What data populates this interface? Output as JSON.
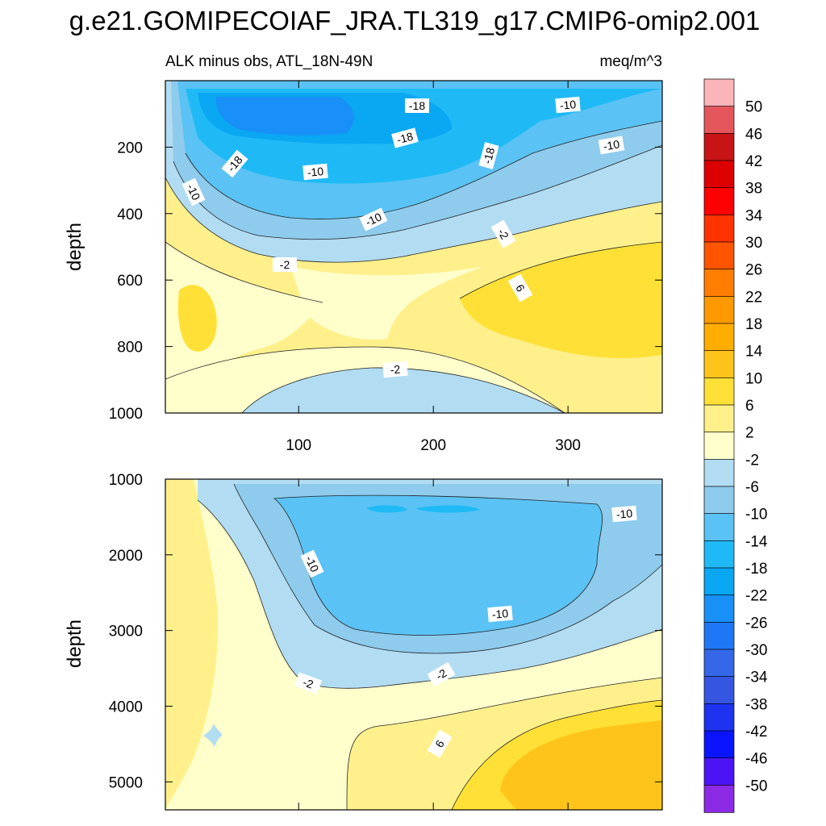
{
  "chart_data": {
    "type": "heatmap",
    "title": "g.e21.GOMIPECOIAF_JRA.TL319_g17.CMIP6-omip2.001",
    "left_subtitle": "ALK minus obs, ATL_18N-49N",
    "right_subtitle": "meq/m^3",
    "colorbar": {
      "levels": [
        "50",
        "46",
        "42",
        "38",
        "34",
        "30",
        "26",
        "22",
        "18",
        "14",
        "10",
        "6",
        "2",
        "-2",
        "-6",
        "-10",
        "-14",
        "-18",
        "-22",
        "-26",
        "-30",
        "-34",
        "-38",
        "-42",
        "-46",
        "-50"
      ],
      "colors": [
        "#fbb4b9",
        "#e5565c",
        "#c81414",
        "#dc0000",
        "#ff0000",
        "#ff3300",
        "#ff5500",
        "#ff7d00",
        "#ff9900",
        "#ffae00",
        "#ffc41b",
        "#ffe036",
        "#fff08c",
        "#ffffcc",
        "#b2dcf2",
        "#8ecbed",
        "#5ac2f4",
        "#1fbaf6",
        "#0aa7f3",
        "#1890f7",
        "#1e78f5",
        "#3468e8",
        "#3456e0",
        "#1e33f0",
        "#0a14ff",
        "#4b14f5",
        "#8c2ae6"
      ]
    },
    "upper_panel": {
      "ylabel": "depth",
      "yticks": [
        "200",
        "400",
        "600",
        "800",
        "1000"
      ],
      "xticks": [
        "100",
        "200",
        "300"
      ],
      "xlim": [
        1,
        370
      ],
      "ylim": [
        1000,
        0
      ],
      "contour_labels": [
        "-18",
        "-10",
        "-18",
        "-18",
        "-10",
        "-10",
        "-18",
        "-10",
        "-10",
        "-2",
        "-2",
        "6",
        "-2"
      ]
    },
    "lower_panel": {
      "ylabel": "depth",
      "yticks": [
        "1000",
        "2000",
        "3000",
        "4000",
        "5000"
      ],
      "xlim": [
        1,
        370
      ],
      "ylim": [
        5370,
        1000
      ],
      "contour_labels": [
        "-10",
        "-10",
        "-10",
        "-2",
        "-2",
        "6"
      ]
    }
  }
}
